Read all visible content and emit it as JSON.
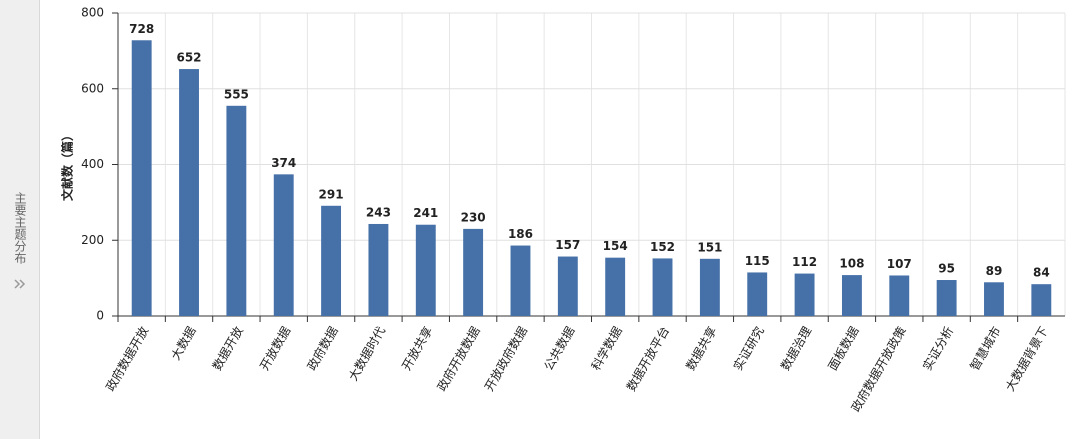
{
  "sidebar": {
    "label": "主要主题分布"
  },
  "chart_data": {
    "type": "bar",
    "y_label": "文献数（篇）",
    "categories": [
      "政府数据开放",
      "大数据",
      "数据开放",
      "开放数据",
      "政府数据",
      "大数据时代",
      "开放共享",
      "政府开放数据",
      "开放政府数据",
      "公共数据",
      "科学数据",
      "数据开放平台",
      "数据共享",
      "实证研究",
      "数据治理",
      "面板数据",
      "政府数据开放政策",
      "实证分析",
      "智慧城市",
      "大数据背景下"
    ],
    "values": [
      728,
      652,
      555,
      374,
      291,
      243,
      241,
      230,
      186,
      157,
      154,
      152,
      151,
      115,
      112,
      108,
      107,
      95,
      89,
      84
    ],
    "color": "#4570a8",
    "ylim": [
      0,
      800
    ],
    "yticks": [
      0,
      200,
      400,
      600,
      800
    ],
    "grid": true,
    "show_values": true
  }
}
